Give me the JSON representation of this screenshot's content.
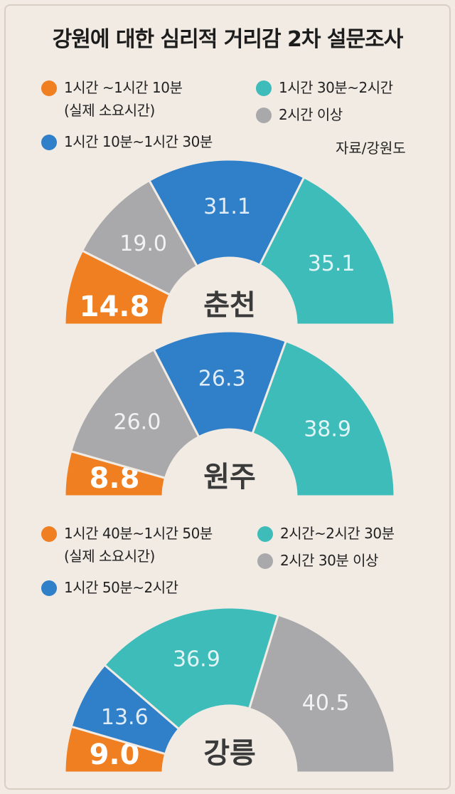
{
  "title": "강원에 대한 심리적 거리감 2차 설문조사",
  "source": "자료/강원도",
  "colors": {
    "orange": "#ef7f21",
    "blue": "#2f7fc9",
    "teal": "#3dbcba",
    "gray": "#a9a9ab",
    "background": "#f1ebe4"
  },
  "legend1": [
    {
      "color": "#ef7f21",
      "label": "1시간 ~1시간 10분",
      "sub": "(실제 소요시간)"
    },
    {
      "color": "#2f7fc9",
      "label": "1시간 10분~1시간 30분"
    },
    {
      "color": "#3dbcba",
      "label": "1시간 30분~2시간"
    },
    {
      "color": "#a9a9ab",
      "label": "2시간 이상"
    }
  ],
  "legend2": [
    {
      "color": "#ef7f21",
      "label": "1시간 40분~1시간 50분",
      "sub": "(실제 소요시간)"
    },
    {
      "color": "#2f7fc9",
      "label": "1시간 50분~2시간"
    },
    {
      "color": "#3dbcba",
      "label": "2시간~2시간 30분"
    },
    {
      "color": "#a9a9ab",
      "label": "2시간 30분 이상"
    }
  ],
  "chart_data": [
    {
      "type": "pie",
      "title": "춘천",
      "slices": [
        {
          "label": "1시간 ~1시간 10분",
          "value": 14.8,
          "color": "#ef7f21",
          "value_label": "14.8"
        },
        {
          "label": "2시간 이상",
          "value": 19.0,
          "color": "#a9a9ab",
          "value_label": "19.0"
        },
        {
          "label": "1시간 10분~1시간 30분",
          "value": 31.1,
          "color": "#2f7fc9",
          "value_label": "31.1"
        },
        {
          "label": "1시간 30분~2시간",
          "value": 35.1,
          "color": "#3dbcba",
          "value_label": "35.1"
        }
      ]
    },
    {
      "type": "pie",
      "title": "원주",
      "slices": [
        {
          "label": "1시간 ~1시간 10분",
          "value": 8.8,
          "color": "#ef7f21",
          "value_label": "8.8"
        },
        {
          "label": "2시간 이상",
          "value": 26.0,
          "color": "#a9a9ab",
          "value_label": "26.0"
        },
        {
          "label": "1시간 10분~1시간 30분",
          "value": 26.3,
          "color": "#2f7fc9",
          "value_label": "26.3"
        },
        {
          "label": "1시간 30분~2시간",
          "value": 38.9,
          "color": "#3dbcba",
          "value_label": "38.9"
        }
      ]
    },
    {
      "type": "pie",
      "title": "강릉",
      "slices": [
        {
          "label": "1시간 40분~1시간 50분",
          "value": 9.0,
          "color": "#ef7f21",
          "value_label": "9.0"
        },
        {
          "label": "1시간 50분~2시간",
          "value": 13.6,
          "color": "#2f7fc9",
          "value_label": "13.6"
        },
        {
          "label": "2시간~2시간 30분",
          "value": 36.9,
          "color": "#3dbcba",
          "value_label": "36.9"
        },
        {
          "label": "2시간 30분 이상",
          "value": 40.5,
          "color": "#a9a9ab",
          "value_label": "40.5"
        }
      ]
    }
  ]
}
